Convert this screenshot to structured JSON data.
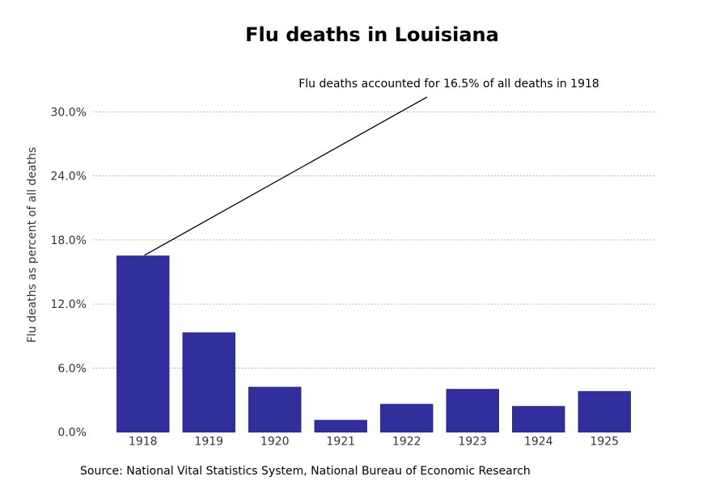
{
  "chart_data": {
    "type": "bar",
    "title": "Flu deaths in Louisiana",
    "xlabel": "",
    "ylabel": "Flu deaths as percent of all deaths",
    "categories": [
      "1918",
      "1919",
      "1920",
      "1921",
      "1922",
      "1923",
      "1924",
      "1925"
    ],
    "values": [
      16.5,
      9.3,
      4.2,
      1.1,
      2.6,
      4.0,
      2.4,
      3.8
    ],
    "ylim": [
      0,
      30
    ],
    "yticks": [
      0,
      6,
      12,
      18,
      24,
      30
    ],
    "ytick_labels": [
      "0.0%",
      "6.0%",
      "12.0%",
      "18.0%",
      "24.0%",
      "30.0%"
    ],
    "grid": true,
    "bar_color": "#312e9e",
    "annotation": {
      "text": "Flu deaths accounted for 16.5% of all deaths in 1918",
      "target_category": "1918",
      "target_value": 16.5
    },
    "source": "Source: National Vital Statistics System, National Bureau of Economic Research"
  }
}
